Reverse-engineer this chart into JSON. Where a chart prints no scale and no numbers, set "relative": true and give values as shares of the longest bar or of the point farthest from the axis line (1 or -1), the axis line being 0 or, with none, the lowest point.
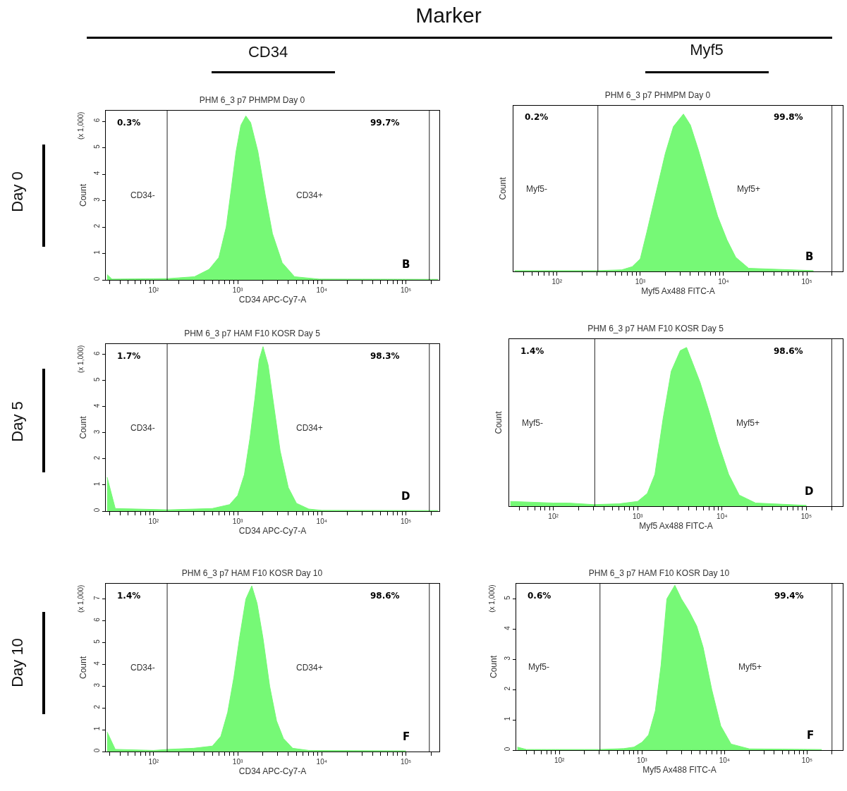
{
  "chart_data": [
    {
      "type": "area",
      "title": "PHM 6_3 p7 PHMPM Day 0",
      "xlabel": "CD34 APC-Cy7-A",
      "ylabel": "Count",
      "log": "x",
      "color": "#76f976",
      "xlim": [
        27,
        250000
      ],
      "ylim": [
        0,
        6.4
      ],
      "yticks": [
        0,
        1,
        2,
        3,
        4,
        5,
        6
      ],
      "xticks": [
        {
          "value": 30,
          "label": null
        },
        {
          "value": 40,
          "label": null
        },
        {
          "value": 50,
          "label": null
        },
        {
          "value": 60,
          "label": null
        },
        {
          "value": 70,
          "label": null
        },
        {
          "value": 80,
          "label": null
        },
        {
          "value": 90,
          "label": null
        },
        {
          "value": 100,
          "label": "10²"
        },
        {
          "value": 200,
          "label": null
        },
        {
          "value": 300,
          "label": null
        },
        {
          "value": 400,
          "label": null
        },
        {
          "value": 500,
          "label": null
        },
        {
          "value": 600,
          "label": null
        },
        {
          "value": 700,
          "label": null
        },
        {
          "value": 800,
          "label": null
        },
        {
          "value": 900,
          "label": null
        },
        {
          "value": 1000,
          "label": "10³"
        },
        {
          "value": 2000,
          "label": null
        },
        {
          "value": 3000,
          "label": null
        },
        {
          "value": 4000,
          "label": null
        },
        {
          "value": 5000,
          "label": null
        },
        {
          "value": 6000,
          "label": null
        },
        {
          "value": 7000,
          "label": null
        },
        {
          "value": 8000,
          "label": null
        },
        {
          "value": 9000,
          "label": null
        },
        {
          "value": 10000,
          "label": "10⁴"
        },
        {
          "value": 20000,
          "label": null
        },
        {
          "value": 30000,
          "label": null
        },
        {
          "value": 40000,
          "label": null
        },
        {
          "value": 50000,
          "label": null
        },
        {
          "value": 60000,
          "label": null
        },
        {
          "value": 70000,
          "label": null
        },
        {
          "value": 80000,
          "label": null
        },
        {
          "value": 90000,
          "label": null
        },
        {
          "value": 100000,
          "label": "10⁵"
        },
        {
          "value": 200000,
          "label": null
        }
      ],
      "x": [
        28,
        32,
        150,
        306,
        457,
        597,
        730,
        835,
        955,
        1090,
        1250,
        1425,
        1740,
        2130,
        2590,
        3380,
        4740,
        9300,
        240000
      ],
      "values": [
        0.2,
        0.03,
        0.05,
        0.12,
        0.4,
        0.85,
        2.0,
        3.4,
        4.85,
        5.85,
        6.2,
        5.95,
        4.85,
        3.2,
        1.75,
        0.65,
        0.12,
        0.03,
        0.02
      ],
      "ref_lines": [
        {
          "axis": "x",
          "value": 145
        },
        {
          "axis": "x",
          "value": 190000
        }
      ],
      "annotations": [
        "0.3%",
        "99.7%",
        "B",
        "CD34-",
        "CD34+",
        "(x 1,000)"
      ]
    },
    {
      "type": "area",
      "title": "PHM 6_3 p7 PHMPM Day 0",
      "xlabel": "Myf5 Ax488 FITC-A",
      "ylabel": "Count",
      "log": "x",
      "relative": true,
      "color": "#76f976",
      "xlim": [
        30,
        270000
      ],
      "xticks": [
        {
          "value": 40,
          "label": null
        },
        {
          "value": 50,
          "label": null
        },
        {
          "value": 60,
          "label": null
        },
        {
          "value": 70,
          "label": null
        },
        {
          "value": 80,
          "label": null
        },
        {
          "value": 90,
          "label": null
        },
        {
          "value": 100,
          "label": "10²"
        },
        {
          "value": 200,
          "label": null
        },
        {
          "value": 300,
          "label": null
        },
        {
          "value": 400,
          "label": null
        },
        {
          "value": 500,
          "label": null
        },
        {
          "value": 600,
          "label": null
        },
        {
          "value": 700,
          "label": null
        },
        {
          "value": 800,
          "label": null
        },
        {
          "value": 900,
          "label": null
        },
        {
          "value": 1000,
          "label": "10³"
        },
        {
          "value": 2000,
          "label": null
        },
        {
          "value": 3000,
          "label": null
        },
        {
          "value": 4000,
          "label": null
        },
        {
          "value": 5000,
          "label": null
        },
        {
          "value": 6000,
          "label": null
        },
        {
          "value": 7000,
          "label": null
        },
        {
          "value": 8000,
          "label": null
        },
        {
          "value": 9000,
          "label": null
        },
        {
          "value": 10000,
          "label": "10⁴"
        },
        {
          "value": 20000,
          "label": null
        },
        {
          "value": 30000,
          "label": null
        },
        {
          "value": 40000,
          "label": null
        },
        {
          "value": 50000,
          "label": null
        },
        {
          "value": 60000,
          "label": null
        },
        {
          "value": 70000,
          "label": null
        },
        {
          "value": 80000,
          "label": null
        },
        {
          "value": 90000,
          "label": null
        },
        {
          "value": 100000,
          "label": "10⁵"
        },
        {
          "value": 200000,
          "label": null
        }
      ],
      "x": [
        31,
        300,
        600,
        800,
        1000,
        1200,
        1500,
        2000,
        2500,
        3300,
        4000,
        5000,
        6500,
        8500,
        11000,
        14000,
        20000,
        120000
      ],
      "values": [
        0.005,
        0.005,
        0.01,
        0.03,
        0.08,
        0.25,
        0.47,
        0.75,
        0.92,
        1.0,
        0.93,
        0.77,
        0.56,
        0.35,
        0.2,
        0.09,
        0.02,
        0.005
      ],
      "ref_lines": [
        {
          "axis": "x",
          "value": 310
        },
        {
          "axis": "x",
          "value": 200000
        }
      ],
      "annotations": [
        "0.2%",
        "99.8%",
        "B",
        "Myf5-",
        "Myf5+"
      ]
    },
    {
      "type": "area",
      "title": "PHM 6_3 p7 HAM F10 KOSR Day 5",
      "xlabel": "CD34 APC-Cy7-A",
      "ylabel": "Count",
      "log": "x",
      "color": "#76f976",
      "xlim": [
        27,
        250000
      ],
      "ylim": [
        0,
        6.4
      ],
      "yticks": [
        0,
        1,
        2,
        3,
        4,
        5,
        6
      ],
      "xticks": [
        {
          "value": 30,
          "label": null
        },
        {
          "value": 40,
          "label": null
        },
        {
          "value": 50,
          "label": null
        },
        {
          "value": 60,
          "label": null
        },
        {
          "value": 70,
          "label": null
        },
        {
          "value": 80,
          "label": null
        },
        {
          "value": 90,
          "label": null
        },
        {
          "value": 100,
          "label": "10²"
        },
        {
          "value": 200,
          "label": null
        },
        {
          "value": 300,
          "label": null
        },
        {
          "value": 400,
          "label": null
        },
        {
          "value": 500,
          "label": null
        },
        {
          "value": 600,
          "label": null
        },
        {
          "value": 700,
          "label": null
        },
        {
          "value": 800,
          "label": null
        },
        {
          "value": 900,
          "label": null
        },
        {
          "value": 1000,
          "label": "10³"
        },
        {
          "value": 2000,
          "label": null
        },
        {
          "value": 3000,
          "label": null
        },
        {
          "value": 4000,
          "label": null
        },
        {
          "value": 5000,
          "label": null
        },
        {
          "value": 6000,
          "label": null
        },
        {
          "value": 7000,
          "label": null
        },
        {
          "value": 8000,
          "label": null
        },
        {
          "value": 9000,
          "label": null
        },
        {
          "value": 10000,
          "label": "10⁴"
        },
        {
          "value": 20000,
          "label": null
        },
        {
          "value": 30000,
          "label": null
        },
        {
          "value": 40000,
          "label": null
        },
        {
          "value": 50000,
          "label": null
        },
        {
          "value": 60000,
          "label": null
        },
        {
          "value": 70000,
          "label": null
        },
        {
          "value": 80000,
          "label": null
        },
        {
          "value": 90000,
          "label": null
        },
        {
          "value": 100000,
          "label": "10⁵"
        },
        {
          "value": 200000,
          "label": null
        }
      ],
      "x": [
        28,
        35,
        150,
        500,
        800,
        1000,
        1200,
        1400,
        1600,
        1800,
        2000,
        2300,
        2700,
        3200,
        4000,
        5000,
        7000,
        10000,
        240000
      ],
      "values": [
        1.3,
        0.1,
        0.05,
        0.1,
        0.25,
        0.6,
        1.4,
        2.8,
        4.3,
        5.8,
        6.3,
        5.6,
        4.0,
        2.3,
        0.9,
        0.3,
        0.08,
        0.03,
        0.02
      ],
      "ref_lines": [
        {
          "axis": "x",
          "value": 145
        },
        {
          "axis": "x",
          "value": 190000
        }
      ],
      "annotations": [
        "1.7%",
        "98.3%",
        "D",
        "CD34-",
        "CD34+",
        "(x 1,000)"
      ]
    },
    {
      "type": "area",
      "title": "PHM 6_3 p7 HAM F10 KOSR Day 5",
      "xlabel": "Myf5 Ax488 FITC-A",
      "ylabel": "Count",
      "log": "x",
      "relative": true,
      "color": "#76f976",
      "xlim": [
        30,
        270000
      ],
      "xticks": [
        {
          "value": 40,
          "label": null
        },
        {
          "value": 50,
          "label": null
        },
        {
          "value": 60,
          "label": null
        },
        {
          "value": 70,
          "label": null
        },
        {
          "value": 80,
          "label": null
        },
        {
          "value": 90,
          "label": null
        },
        {
          "value": 100,
          "label": "10²"
        },
        {
          "value": 200,
          "label": null
        },
        {
          "value": 300,
          "label": null
        },
        {
          "value": 400,
          "label": null
        },
        {
          "value": 500,
          "label": null
        },
        {
          "value": 600,
          "label": null
        },
        {
          "value": 700,
          "label": null
        },
        {
          "value": 800,
          "label": null
        },
        {
          "value": 900,
          "label": null
        },
        {
          "value": 1000,
          "label": "10³"
        },
        {
          "value": 2000,
          "label": null
        },
        {
          "value": 3000,
          "label": null
        },
        {
          "value": 4000,
          "label": null
        },
        {
          "value": 5000,
          "label": null
        },
        {
          "value": 6000,
          "label": null
        },
        {
          "value": 7000,
          "label": null
        },
        {
          "value": 8000,
          "label": null
        },
        {
          "value": 9000,
          "label": null
        },
        {
          "value": 10000,
          "label": "10⁴"
        },
        {
          "value": 20000,
          "label": null
        },
        {
          "value": 30000,
          "label": null
        },
        {
          "value": 40000,
          "label": null
        },
        {
          "value": 50000,
          "label": null
        },
        {
          "value": 60000,
          "label": null
        },
        {
          "value": 70000,
          "label": null
        },
        {
          "value": 80000,
          "label": null
        },
        {
          "value": 90000,
          "label": null
        },
        {
          "value": 100000,
          "label": "10⁵"
        },
        {
          "value": 200000,
          "label": null
        }
      ],
      "x": [
        31,
        100,
        150,
        300,
        600,
        1000,
        1300,
        1600,
        2000,
        2500,
        3200,
        3800,
        4500,
        5500,
        7000,
        9000,
        12000,
        16000,
        25000,
        100000
      ],
      "values": [
        0.03,
        0.02,
        0.02,
        0.01,
        0.015,
        0.03,
        0.08,
        0.2,
        0.55,
        0.85,
        0.98,
        1.0,
        0.9,
        0.78,
        0.6,
        0.4,
        0.2,
        0.07,
        0.02,
        0.005
      ],
      "ref_lines": [
        {
          "axis": "x",
          "value": 310
        },
        {
          "axis": "x",
          "value": 200000
        }
      ],
      "annotations": [
        "1.4%",
        "98.6%",
        "D",
        "Myf5-",
        "Myf5+"
      ]
    },
    {
      "type": "area",
      "title": "PHM 6_3 p7 HAM F10 KOSR Day 10",
      "xlabel": "CD34 APC-Cy7-A",
      "ylabel": "Count",
      "log": "x",
      "color": "#76f976",
      "xlim": [
        27,
        250000
      ],
      "ylim": [
        0,
        7.7
      ],
      "yticks": [
        0,
        1,
        2,
        3,
        4,
        5,
        6,
        7
      ],
      "xticks": [
        {
          "value": 30,
          "label": null
        },
        {
          "value": 40,
          "label": null
        },
        {
          "value": 50,
          "label": null
        },
        {
          "value": 60,
          "label": null
        },
        {
          "value": 70,
          "label": null
        },
        {
          "value": 80,
          "label": null
        },
        {
          "value": 90,
          "label": null
        },
        {
          "value": 100,
          "label": "10²"
        },
        {
          "value": 200,
          "label": null
        },
        {
          "value": 300,
          "label": null
        },
        {
          "value": 400,
          "label": null
        },
        {
          "value": 500,
          "label": null
        },
        {
          "value": 600,
          "label": null
        },
        {
          "value": 700,
          "label": null
        },
        {
          "value": 800,
          "label": null
        },
        {
          "value": 900,
          "label": null
        },
        {
          "value": 1000,
          "label": "10³"
        },
        {
          "value": 2000,
          "label": null
        },
        {
          "value": 3000,
          "label": null
        },
        {
          "value": 4000,
          "label": null
        },
        {
          "value": 5000,
          "label": null
        },
        {
          "value": 6000,
          "label": null
        },
        {
          "value": 7000,
          "label": null
        },
        {
          "value": 8000,
          "label": null
        },
        {
          "value": 9000,
          "label": null
        },
        {
          "value": 10000,
          "label": "10⁴"
        },
        {
          "value": 20000,
          "label": null
        },
        {
          "value": 30000,
          "label": null
        },
        {
          "value": 40000,
          "label": null
        },
        {
          "value": 50000,
          "label": null
        },
        {
          "value": 60000,
          "label": null
        },
        {
          "value": 70000,
          "label": null
        },
        {
          "value": 80000,
          "label": null
        },
        {
          "value": 90000,
          "label": null
        },
        {
          "value": 100000,
          "label": "10⁵"
        },
        {
          "value": 200000,
          "label": null
        }
      ],
      "x": [
        28,
        35,
        100,
        150,
        300,
        500,
        630,
        760,
        900,
        1050,
        1250,
        1470,
        1700,
        2000,
        2400,
        2900,
        3500,
        4500,
        7000,
        100000
      ],
      "values": [
        0.9,
        0.1,
        0.05,
        0.1,
        0.15,
        0.25,
        0.7,
        1.8,
        3.4,
        5.2,
        7.0,
        7.6,
        6.8,
        5.2,
        3.0,
        1.4,
        0.6,
        0.15,
        0.05,
        0.03
      ],
      "ref_lines": [
        {
          "axis": "x",
          "value": 145
        },
        {
          "axis": "x",
          "value": 190000
        }
      ],
      "annotations": [
        "1.4%",
        "98.6%",
        "F",
        "CD34-",
        "CD34+",
        "(x 1,000)"
      ]
    },
    {
      "type": "area",
      "title": "PHM 6_3 p7 HAM F10 KOSR Day 10",
      "xlabel": "Myf5 Ax488 FITC-A",
      "ylabel": "Count",
      "log": "x",
      "color": "#76f976",
      "xlim": [
        30,
        270000
      ],
      "ylim": [
        0,
        5.5
      ],
      "yticks": [
        0,
        1,
        2,
        3,
        4,
        5
      ],
      "xticks": [
        {
          "value": 40,
          "label": null
        },
        {
          "value": 50,
          "label": null
        },
        {
          "value": 60,
          "label": null
        },
        {
          "value": 70,
          "label": null
        },
        {
          "value": 80,
          "label": null
        },
        {
          "value": 90,
          "label": null
        },
        {
          "value": 100,
          "label": "10²"
        },
        {
          "value": 200,
          "label": null
        },
        {
          "value": 300,
          "label": null
        },
        {
          "value": 400,
          "label": null
        },
        {
          "value": 500,
          "label": null
        },
        {
          "value": 600,
          "label": null
        },
        {
          "value": 700,
          "label": null
        },
        {
          "value": 800,
          "label": null
        },
        {
          "value": 900,
          "label": null
        },
        {
          "value": 1000,
          "label": "10³"
        },
        {
          "value": 2000,
          "label": null
        },
        {
          "value": 3000,
          "label": null
        },
        {
          "value": 4000,
          "label": null
        },
        {
          "value": 5000,
          "label": null
        },
        {
          "value": 6000,
          "label": null
        },
        {
          "value": 7000,
          "label": null
        },
        {
          "value": 8000,
          "label": null
        },
        {
          "value": 9000,
          "label": null
        },
        {
          "value": 10000,
          "label": "10⁴"
        },
        {
          "value": 20000,
          "label": null
        },
        {
          "value": 30000,
          "label": null
        },
        {
          "value": 40000,
          "label": null
        },
        {
          "value": 50000,
          "label": null
        },
        {
          "value": 60000,
          "label": null
        },
        {
          "value": 70000,
          "label": null
        },
        {
          "value": 80000,
          "label": null
        },
        {
          "value": 90000,
          "label": null
        },
        {
          "value": 100000,
          "label": "10⁵"
        },
        {
          "value": 200000,
          "label": null
        }
      ],
      "x": [
        31,
        40,
        300,
        600,
        800,
        1000,
        1200,
        1450,
        1700,
        2000,
        2500,
        3000,
        3700,
        4600,
        5500,
        7000,
        9000,
        12000,
        20000,
        150000
      ],
      "values": [
        0.1,
        0.02,
        0.02,
        0.05,
        0.1,
        0.26,
        0.5,
        1.3,
        2.8,
        5.0,
        5.45,
        5.0,
        4.6,
        4.1,
        3.4,
        2.0,
        0.8,
        0.2,
        0.04,
        0.02
      ],
      "ref_lines": [
        {
          "axis": "x",
          "value": 310
        },
        {
          "axis": "x",
          "value": 200000
        }
      ],
      "annotations": [
        "0.6%",
        "99.4%",
        "F",
        "Myf5-",
        "Myf5+",
        "(x 1,000)"
      ]
    },
    {
      "type": "other",
      "annotations": [
        "Marker",
        "CD34",
        "Myf5",
        "Day 0",
        "Day 5",
        "Day 10"
      ]
    }
  ]
}
